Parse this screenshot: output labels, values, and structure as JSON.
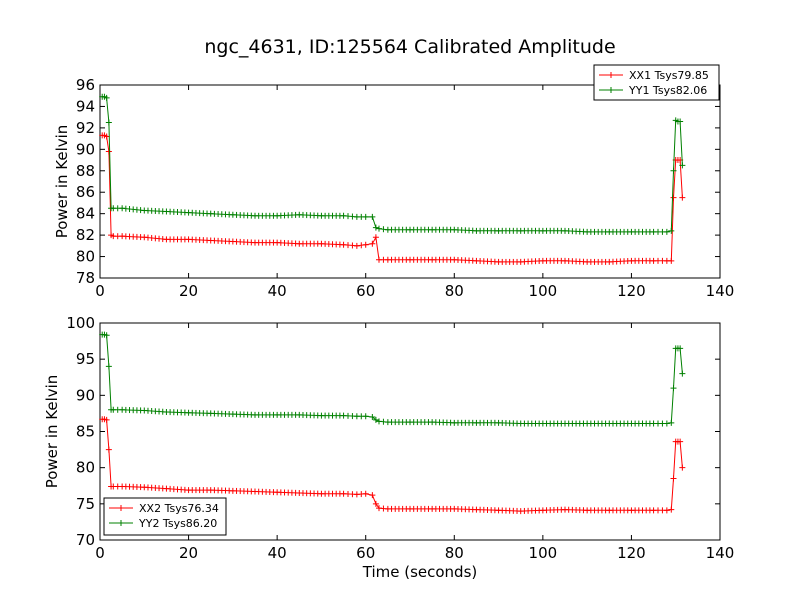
{
  "figure": {
    "title": "ngc_4631, ID:125564 Calibrated Amplitude"
  },
  "chart_data": [
    {
      "type": "line",
      "title": "ngc_4631, ID:125564 Calibrated Amplitude",
      "xlabel": "",
      "ylabel": "Power in Kelvin",
      "xlim": [
        0,
        140
      ],
      "ylim": [
        78,
        96
      ],
      "xticks": [
        0,
        20,
        40,
        60,
        80,
        100,
        120,
        140
      ],
      "yticks": [
        78,
        80,
        82,
        84,
        86,
        88,
        90,
        92,
        94,
        96
      ],
      "grid": false,
      "legend": "top-right",
      "series": [
        {
          "name": "XX1 Tsys79.85",
          "color": "#ff0000",
          "x": [
            0.5,
            1.0,
            1.5,
            2.0,
            2.5,
            3,
            5,
            10,
            15,
            20,
            25,
            30,
            35,
            40,
            45,
            50,
            55,
            58,
            60,
            61.5,
            62.3,
            63,
            65,
            70,
            75,
            80,
            85,
            90,
            95,
            100,
            105,
            110,
            115,
            120,
            125,
            128,
            129,
            129.5,
            130,
            130.5,
            131,
            131.5
          ],
          "y": [
            91.3,
            91.3,
            91.2,
            89.8,
            82.0,
            81.9,
            81.9,
            81.8,
            81.6,
            81.6,
            81.5,
            81.4,
            81.3,
            81.3,
            81.2,
            81.2,
            81.1,
            81.0,
            81.1,
            81.2,
            81.8,
            79.7,
            79.7,
            79.7,
            79.7,
            79.7,
            79.6,
            79.5,
            79.5,
            79.6,
            79.6,
            79.5,
            79.5,
            79.6,
            79.6,
            79.6,
            79.6,
            85.5,
            89.0,
            89.0,
            89.0,
            85.5
          ]
        },
        {
          "name": "YY1 Tsys82.06",
          "color": "#008000",
          "x": [
            0.5,
            1.0,
            1.5,
            2.0,
            2.5,
            3,
            5,
            10,
            15,
            20,
            25,
            30,
            35,
            40,
            45,
            50,
            55,
            58,
            60,
            61.5,
            62.3,
            63,
            65,
            70,
            75,
            80,
            85,
            90,
            95,
            100,
            105,
            110,
            115,
            120,
            125,
            128,
            129,
            129.5,
            130,
            130.5,
            131,
            131.5
          ],
          "y": [
            94.9,
            94.9,
            94.8,
            92.5,
            84.5,
            84.5,
            84.5,
            84.3,
            84.2,
            84.1,
            84.0,
            83.9,
            83.8,
            83.8,
            83.9,
            83.8,
            83.8,
            83.7,
            83.7,
            83.7,
            82.7,
            82.6,
            82.5,
            82.5,
            82.5,
            82.5,
            82.4,
            82.4,
            82.4,
            82.4,
            82.4,
            82.3,
            82.3,
            82.3,
            82.3,
            82.3,
            82.4,
            88.0,
            92.7,
            92.6,
            92.6,
            88.5
          ]
        }
      ]
    },
    {
      "type": "line",
      "title": "",
      "xlabel": "Time (seconds)",
      "ylabel": "Power in Kelvin",
      "xlim": [
        0,
        140
      ],
      "ylim": [
        70,
        100
      ],
      "xticks": [
        0,
        20,
        40,
        60,
        80,
        100,
        120,
        140
      ],
      "yticks": [
        70,
        75,
        80,
        85,
        90,
        95,
        100
      ],
      "grid": false,
      "legend": "bottom-left",
      "series": [
        {
          "name": "XX2 Tsys76.34",
          "color": "#ff0000",
          "x": [
            0.5,
            1.0,
            1.5,
            2.0,
            2.5,
            3,
            5,
            10,
            15,
            20,
            25,
            30,
            35,
            40,
            45,
            50,
            55,
            58,
            60,
            61.5,
            62.3,
            63,
            65,
            70,
            75,
            80,
            85,
            90,
            95,
            100,
            105,
            110,
            115,
            120,
            125,
            128,
            129,
            129.5,
            130,
            130.5,
            131,
            131.5
          ],
          "y": [
            86.7,
            86.7,
            86.6,
            82.5,
            77.4,
            77.4,
            77.4,
            77.3,
            77.1,
            76.9,
            76.9,
            76.8,
            76.7,
            76.6,
            76.5,
            76.4,
            76.4,
            76.3,
            76.4,
            76.2,
            75.0,
            74.4,
            74.3,
            74.3,
            74.3,
            74.3,
            74.2,
            74.1,
            74.0,
            74.1,
            74.2,
            74.1,
            74.1,
            74.1,
            74.1,
            74.1,
            74.2,
            78.5,
            83.6,
            83.6,
            83.6,
            80.0
          ]
        },
        {
          "name": "YY2 Tsys86.20",
          "color": "#008000",
          "x": [
            0.5,
            1.0,
            1.5,
            2.0,
            2.5,
            3,
            5,
            10,
            15,
            20,
            25,
            30,
            35,
            40,
            45,
            50,
            55,
            58,
            60,
            61.5,
            62.3,
            63,
            65,
            70,
            75,
            80,
            85,
            90,
            95,
            100,
            105,
            110,
            115,
            120,
            125,
            128,
            129,
            129.5,
            130,
            130.5,
            131,
            131.5
          ],
          "y": [
            98.4,
            98.4,
            98.3,
            94.0,
            88.0,
            88.0,
            88.0,
            87.9,
            87.7,
            87.6,
            87.5,
            87.4,
            87.3,
            87.3,
            87.3,
            87.2,
            87.2,
            87.1,
            87.1,
            87.0,
            86.6,
            86.4,
            86.3,
            86.3,
            86.3,
            86.2,
            86.2,
            86.2,
            86.1,
            86.1,
            86.1,
            86.1,
            86.1,
            86.1,
            86.1,
            86.1,
            86.2,
            91.0,
            96.5,
            96.5,
            96.5,
            93.0
          ]
        }
      ]
    }
  ]
}
